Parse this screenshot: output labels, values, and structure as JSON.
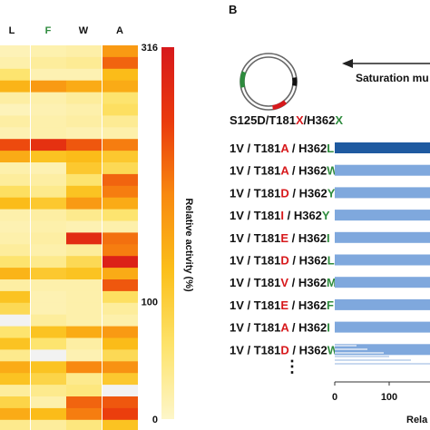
{
  "chart_data": [
    {
      "type": "heatmap",
      "columns": [
        "L",
        "F",
        "W",
        "A"
      ],
      "column_colors": [
        "#111111",
        "#2e8b3d",
        "#111111",
        "#111111"
      ],
      "colorbar": {
        "min_label": "0",
        "mid_label": "100",
        "max_label": "316",
        "min": 0,
        "mid": 100,
        "max": 316,
        "title": "Relative activity (%)",
        "colors": [
          "#fdf6c9",
          "#fde36a",
          "#fbbf1a",
          "#f88a10",
          "#ea3a0d",
          "#d7191c"
        ]
      },
      "values": [
        [
          12,
          18,
          22,
          170
        ],
        [
          20,
          30,
          35,
          220
        ],
        [
          60,
          15,
          15,
          130
        ],
        [
          140,
          170,
          150,
          150
        ],
        [
          25,
          20,
          30,
          60
        ],
        [
          10,
          15,
          20,
          70
        ],
        [
          25,
          20,
          25,
          35
        ],
        [
          15,
          20,
          15,
          20
        ],
        [
          240,
          270,
          230,
          200
        ],
        [
          150,
          120,
          130,
          110
        ],
        [
          20,
          15,
          110,
          80
        ],
        [
          30,
          25,
          60,
          220
        ],
        [
          70,
          40,
          120,
          200
        ],
        [
          130,
          110,
          170,
          150
        ],
        [
          20,
          25,
          40,
          60
        ],
        [
          15,
          20,
          15,
          20
        ],
        [
          20,
          25,
          280,
          210
        ],
        [
          30,
          20,
          30,
          200
        ],
        [
          60,
          40,
          80,
          300
        ],
        [
          140,
          110,
          120,
          150
        ],
        [
          25,
          20,
          20,
          230
        ],
        [
          120,
          15,
          20,
          70
        ],
        [
          80,
          15,
          20,
          30
        ],
        [
          null,
          30,
          20,
          20
        ],
        [
          60,
          120,
          150,
          170
        ],
        [
          120,
          60,
          25,
          130
        ],
        [
          40,
          null,
          15,
          80
        ],
        [
          150,
          120,
          190,
          180
        ],
        [
          120,
          90,
          40,
          110
        ],
        [
          30,
          40,
          50,
          null
        ],
        [
          90,
          20,
          220,
          230
        ],
        [
          150,
          130,
          200,
          250
        ],
        [
          40,
          30,
          50,
          120
        ]
      ]
    },
    {
      "type": "bar",
      "orientation": "horizontal",
      "categories": [
        "1V / T181A / H362L",
        "1V / T181A / H362W",
        "1V / T181D / H362Y",
        "1V / T181I / H362Y",
        "1V / T181E / H362I",
        "1V / T181D / H362L",
        "1V / T181V / H362M",
        "1V / T181E / H362F",
        "1V / T181A / H362I",
        "1V / T181D / H362W"
      ],
      "values": [
        200,
        200,
        200,
        200,
        200,
        200,
        200,
        200,
        200,
        200
      ],
      "faint_values": [
        40,
        60,
        90,
        100,
        140,
        190
      ],
      "xlabel": "Rela",
      "x_ticks": [
        "0",
        "100"
      ],
      "xlim": [
        0,
        200
      ]
    }
  ],
  "panel_label": "B",
  "arrow_text": "Saturation mu",
  "plasmid_label": {
    "parts": [
      "S125D/T181",
      "X",
      "/H362",
      "X"
    ],
    "colors": [
      "#111111",
      "#d7191c",
      "#111111",
      "#2e8b3d"
    ]
  },
  "rows": [
    {
      "p": [
        "1V / T181",
        "A",
        " / H362",
        "L"
      ],
      "c": [
        "#111111",
        "#d7191c",
        "#111111",
        "#2e8b3d"
      ]
    },
    {
      "p": [
        "1V / T181",
        "A",
        " / H362",
        "W"
      ],
      "c": [
        "#111111",
        "#d7191c",
        "#111111",
        "#2e8b3d"
      ]
    },
    {
      "p": [
        "1V / T181",
        "D",
        " / H362",
        "Y"
      ],
      "c": [
        "#111111",
        "#d7191c",
        "#111111",
        "#2e8b3d"
      ]
    },
    {
      "p": [
        "1V / T181",
        "I",
        " / H362",
        "Y"
      ],
      "c": [
        "#111111",
        "#d7191c",
        "#111111",
        "#2e8b3d"
      ]
    },
    {
      "p": [
        "1V / T181",
        "E",
        " / H362",
        "I"
      ],
      "c": [
        "#111111",
        "#d7191c",
        "#111111",
        "#2e8b3d"
      ]
    },
    {
      "p": [
        "1V / T181",
        "D",
        " / H362",
        "L"
      ],
      "c": [
        "#111111",
        "#d7191c",
        "#111111",
        "#2e8b3d"
      ]
    },
    {
      "p": [
        "1V / T181",
        "V",
        " / H362",
        "M"
      ],
      "c": [
        "#111111",
        "#d7191c",
        "#111111",
        "#2e8b3d"
      ]
    },
    {
      "p": [
        "1V / T181",
        "E",
        " / H362",
        "F"
      ],
      "c": [
        "#111111",
        "#d7191c",
        "#111111",
        "#2e8b3d"
      ]
    },
    {
      "p": [
        "1V / T181",
        "A",
        " / H362",
        "I"
      ],
      "c": [
        "#111111",
        "#d7191c",
        "#111111",
        "#2e8b3d"
      ]
    },
    {
      "p": [
        "1V / T181",
        "D",
        " / H362",
        "W"
      ],
      "c": [
        "#111111",
        "#d7191c",
        "#111111",
        "#2e8b3d"
      ]
    }
  ],
  "ellipsis": "⋮",
  "colors": {
    "top_bar": "#1f5aa0",
    "bar": "#7fa8dd",
    "faint_bar": "#c9d9ef",
    "plasmid_green": "#2e8b3d",
    "plasmid_red": "#d7191c"
  }
}
